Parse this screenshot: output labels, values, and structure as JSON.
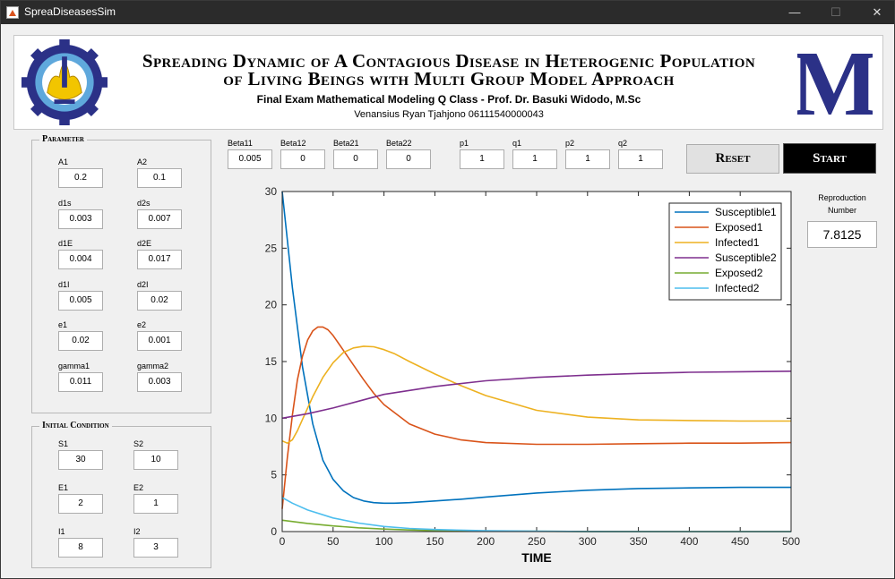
{
  "window": {
    "title": "SpreaDiseasesSim",
    "minimize": "—",
    "maximize": "☐",
    "close": "✕"
  },
  "header": {
    "title_line1": "Spreading Dynamic of A Contagious Disease in Heterogenic Population",
    "title_line2": "of Living Beings with Multi Group Model Approach",
    "subtitle": "Final Exam Mathematical Modeling Q Class - Prof. Dr. Basuki Widodo, M.Sc",
    "author": "Venansius Ryan Tjahjono 06111540000043",
    "logo_letter": "M",
    "logo_color": "#2b3187"
  },
  "parameter": {
    "title": "Parameter",
    "fields": [
      {
        "label": "A1",
        "value": "0.2"
      },
      {
        "label": "A2",
        "value": "0.1"
      },
      {
        "label": "d1s",
        "value": "0.003"
      },
      {
        "label": "d2s",
        "value": "0.007"
      },
      {
        "label": "d1E",
        "value": "0.004"
      },
      {
        "label": "d2E",
        "value": "0.017"
      },
      {
        "label": "d1I",
        "value": "0.005"
      },
      {
        "label": "d2I",
        "value": "0.02"
      },
      {
        "label": "e1",
        "value": "0.02"
      },
      {
        "label": "e2",
        "value": "0.001"
      },
      {
        "label": "gamma1",
        "value": "0.011"
      },
      {
        "label": "gamma2",
        "value": "0.003"
      }
    ]
  },
  "initial": {
    "title": "Initial Condition",
    "fields": [
      {
        "label": "S1",
        "value": "30"
      },
      {
        "label": "S2",
        "value": "10"
      },
      {
        "label": "E1",
        "value": "2"
      },
      {
        "label": "E2",
        "value": "1"
      },
      {
        "label": "I1",
        "value": "8"
      },
      {
        "label": "I2",
        "value": "3"
      }
    ]
  },
  "top_fields": [
    {
      "label": "Beta11",
      "value": "0.005"
    },
    {
      "label": "Beta12",
      "value": "0"
    },
    {
      "label": "Beta21",
      "value": "0"
    },
    {
      "label": "Beta22",
      "value": "0"
    },
    {
      "label": "p1",
      "value": "1"
    },
    {
      "label": "q1",
      "value": "1"
    },
    {
      "label": "p2",
      "value": "1"
    },
    {
      "label": "q2",
      "value": "1"
    }
  ],
  "buttons": {
    "reset": "Reset",
    "start": "Start"
  },
  "reproduction": {
    "label_line1": "Reproduction",
    "label_line2": "Number",
    "value": "7.8125"
  },
  "chart_data": {
    "type": "line",
    "title": "",
    "xlabel": "TIME",
    "ylabel": "",
    "xlim": [
      0,
      500
    ],
    "ylim": [
      0,
      30
    ],
    "xticks": [
      0,
      50,
      100,
      150,
      200,
      250,
      300,
      350,
      400,
      450,
      500
    ],
    "yticks": [
      0,
      5,
      10,
      15,
      20,
      25,
      30
    ],
    "grid": false,
    "legend_position": "top-right",
    "series": [
      {
        "name": "Susceptible1",
        "color": "#0072bd",
        "x": [
          0,
          10,
          20,
          30,
          40,
          50,
          60,
          70,
          80,
          90,
          100,
          110,
          125,
          150,
          175,
          200,
          250,
          300,
          350,
          400,
          450,
          500
        ],
        "y": [
          30,
          21.5,
          14.5,
          9.5,
          6.3,
          4.6,
          3.6,
          3.0,
          2.7,
          2.55,
          2.5,
          2.5,
          2.55,
          2.7,
          2.85,
          3.05,
          3.4,
          3.65,
          3.8,
          3.85,
          3.9,
          3.9
        ]
      },
      {
        "name": "Exposed1",
        "color": "#d95319",
        "x": [
          0,
          5,
          10,
          15,
          20,
          25,
          30,
          35,
          40,
          45,
          50,
          60,
          70,
          80,
          90,
          100,
          125,
          150,
          175,
          200,
          250,
          300,
          350,
          400,
          450,
          500
        ],
        "y": [
          2,
          6.5,
          10.3,
          13.4,
          15.5,
          16.9,
          17.7,
          18.05,
          18.05,
          17.8,
          17.3,
          16.0,
          14.7,
          13.4,
          12.2,
          11.2,
          9.5,
          8.6,
          8.1,
          7.85,
          7.7,
          7.7,
          7.75,
          7.8,
          7.8,
          7.85
        ]
      },
      {
        "name": "Infected1",
        "color": "#edb120",
        "x": [
          0,
          5,
          10,
          15,
          20,
          30,
          40,
          50,
          60,
          70,
          80,
          90,
          100,
          110,
          125,
          150,
          175,
          200,
          250,
          300,
          350,
          400,
          450,
          500
        ],
        "y": [
          8,
          7.8,
          8.1,
          8.9,
          9.9,
          11.9,
          13.6,
          14.9,
          15.8,
          16.2,
          16.35,
          16.3,
          16.05,
          15.7,
          15.0,
          13.9,
          12.9,
          12.0,
          10.7,
          10.1,
          9.85,
          9.8,
          9.75,
          9.75
        ]
      },
      {
        "name": "Susceptible2",
        "color": "#7e2f8e",
        "x": [
          0,
          25,
          50,
          75,
          100,
          150,
          200,
          250,
          300,
          350,
          400,
          450,
          500
        ],
        "y": [
          10,
          10.4,
          10.9,
          11.5,
          12.1,
          12.8,
          13.3,
          13.6,
          13.8,
          13.95,
          14.05,
          14.1,
          14.15
        ]
      },
      {
        "name": "Exposed2",
        "color": "#77ac30",
        "x": [
          0,
          25,
          50,
          75,
          100,
          125,
          150,
          200,
          250,
          300,
          400,
          500
        ],
        "y": [
          1,
          0.72,
          0.5,
          0.33,
          0.22,
          0.14,
          0.09,
          0.04,
          0.02,
          0.01,
          0.0,
          0.0
        ]
      },
      {
        "name": "Infected2",
        "color": "#4dbeee",
        "x": [
          0,
          10,
          25,
          50,
          75,
          100,
          125,
          150,
          200,
          250,
          300,
          400,
          500
        ],
        "y": [
          3,
          2.5,
          1.9,
          1.2,
          0.75,
          0.45,
          0.28,
          0.18,
          0.07,
          0.03,
          0.01,
          0.0,
          0.0
        ]
      }
    ]
  }
}
